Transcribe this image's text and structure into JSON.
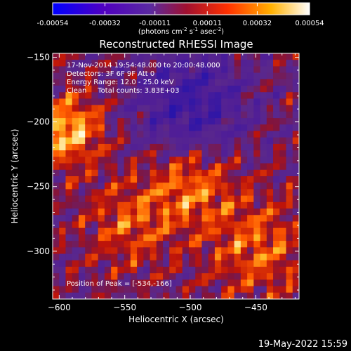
{
  "colorbar": {
    "tick_labels": [
      "-0.00054",
      "-0.00032",
      "-0.00011",
      "0.00011",
      "0.00032",
      "0.00054"
    ],
    "range": [
      -0.00054,
      0.00054
    ],
    "unit_main": "(photons cm",
    "unit_exp1": "-2",
    "unit_mid1": " s",
    "unit_exp2": "-1",
    "unit_mid2": " asec",
    "unit_exp3": "-2",
    "unit_end": ")"
  },
  "chart_data": {
    "type": "heatmap",
    "title": "Reconstructed RHESSI Image",
    "xlabel": "Heliocentric X (arcsec)",
    "ylabel": "Heliocentric Y (arcsec)",
    "xlim": [
      -605,
      -417
    ],
    "ylim": [
      -337,
      -147
    ],
    "xticks": [
      -600,
      -550,
      -500,
      -450
    ],
    "yticks": [
      -150,
      -200,
      -250,
      -300
    ],
    "annotations": [
      "17-Nov-2014 19:54:48.000 to 20:00:48.000",
      "Detectors: 3F 6F 9F  Att 0",
      "Energy Range: 12.0 - 25.0 keV",
      "Clean     Total counts: 3.83E+03"
    ],
    "peak_label": "Position of Peak = [-534,-166]",
    "peak": [
      -534,
      -166
    ],
    "colormap": [
      "#0000ff",
      "#5a2aa0",
      "#a01030",
      "#ff5000",
      "#ffffff"
    ]
  },
  "footer": {
    "date": "19-May-2022 15:59"
  }
}
